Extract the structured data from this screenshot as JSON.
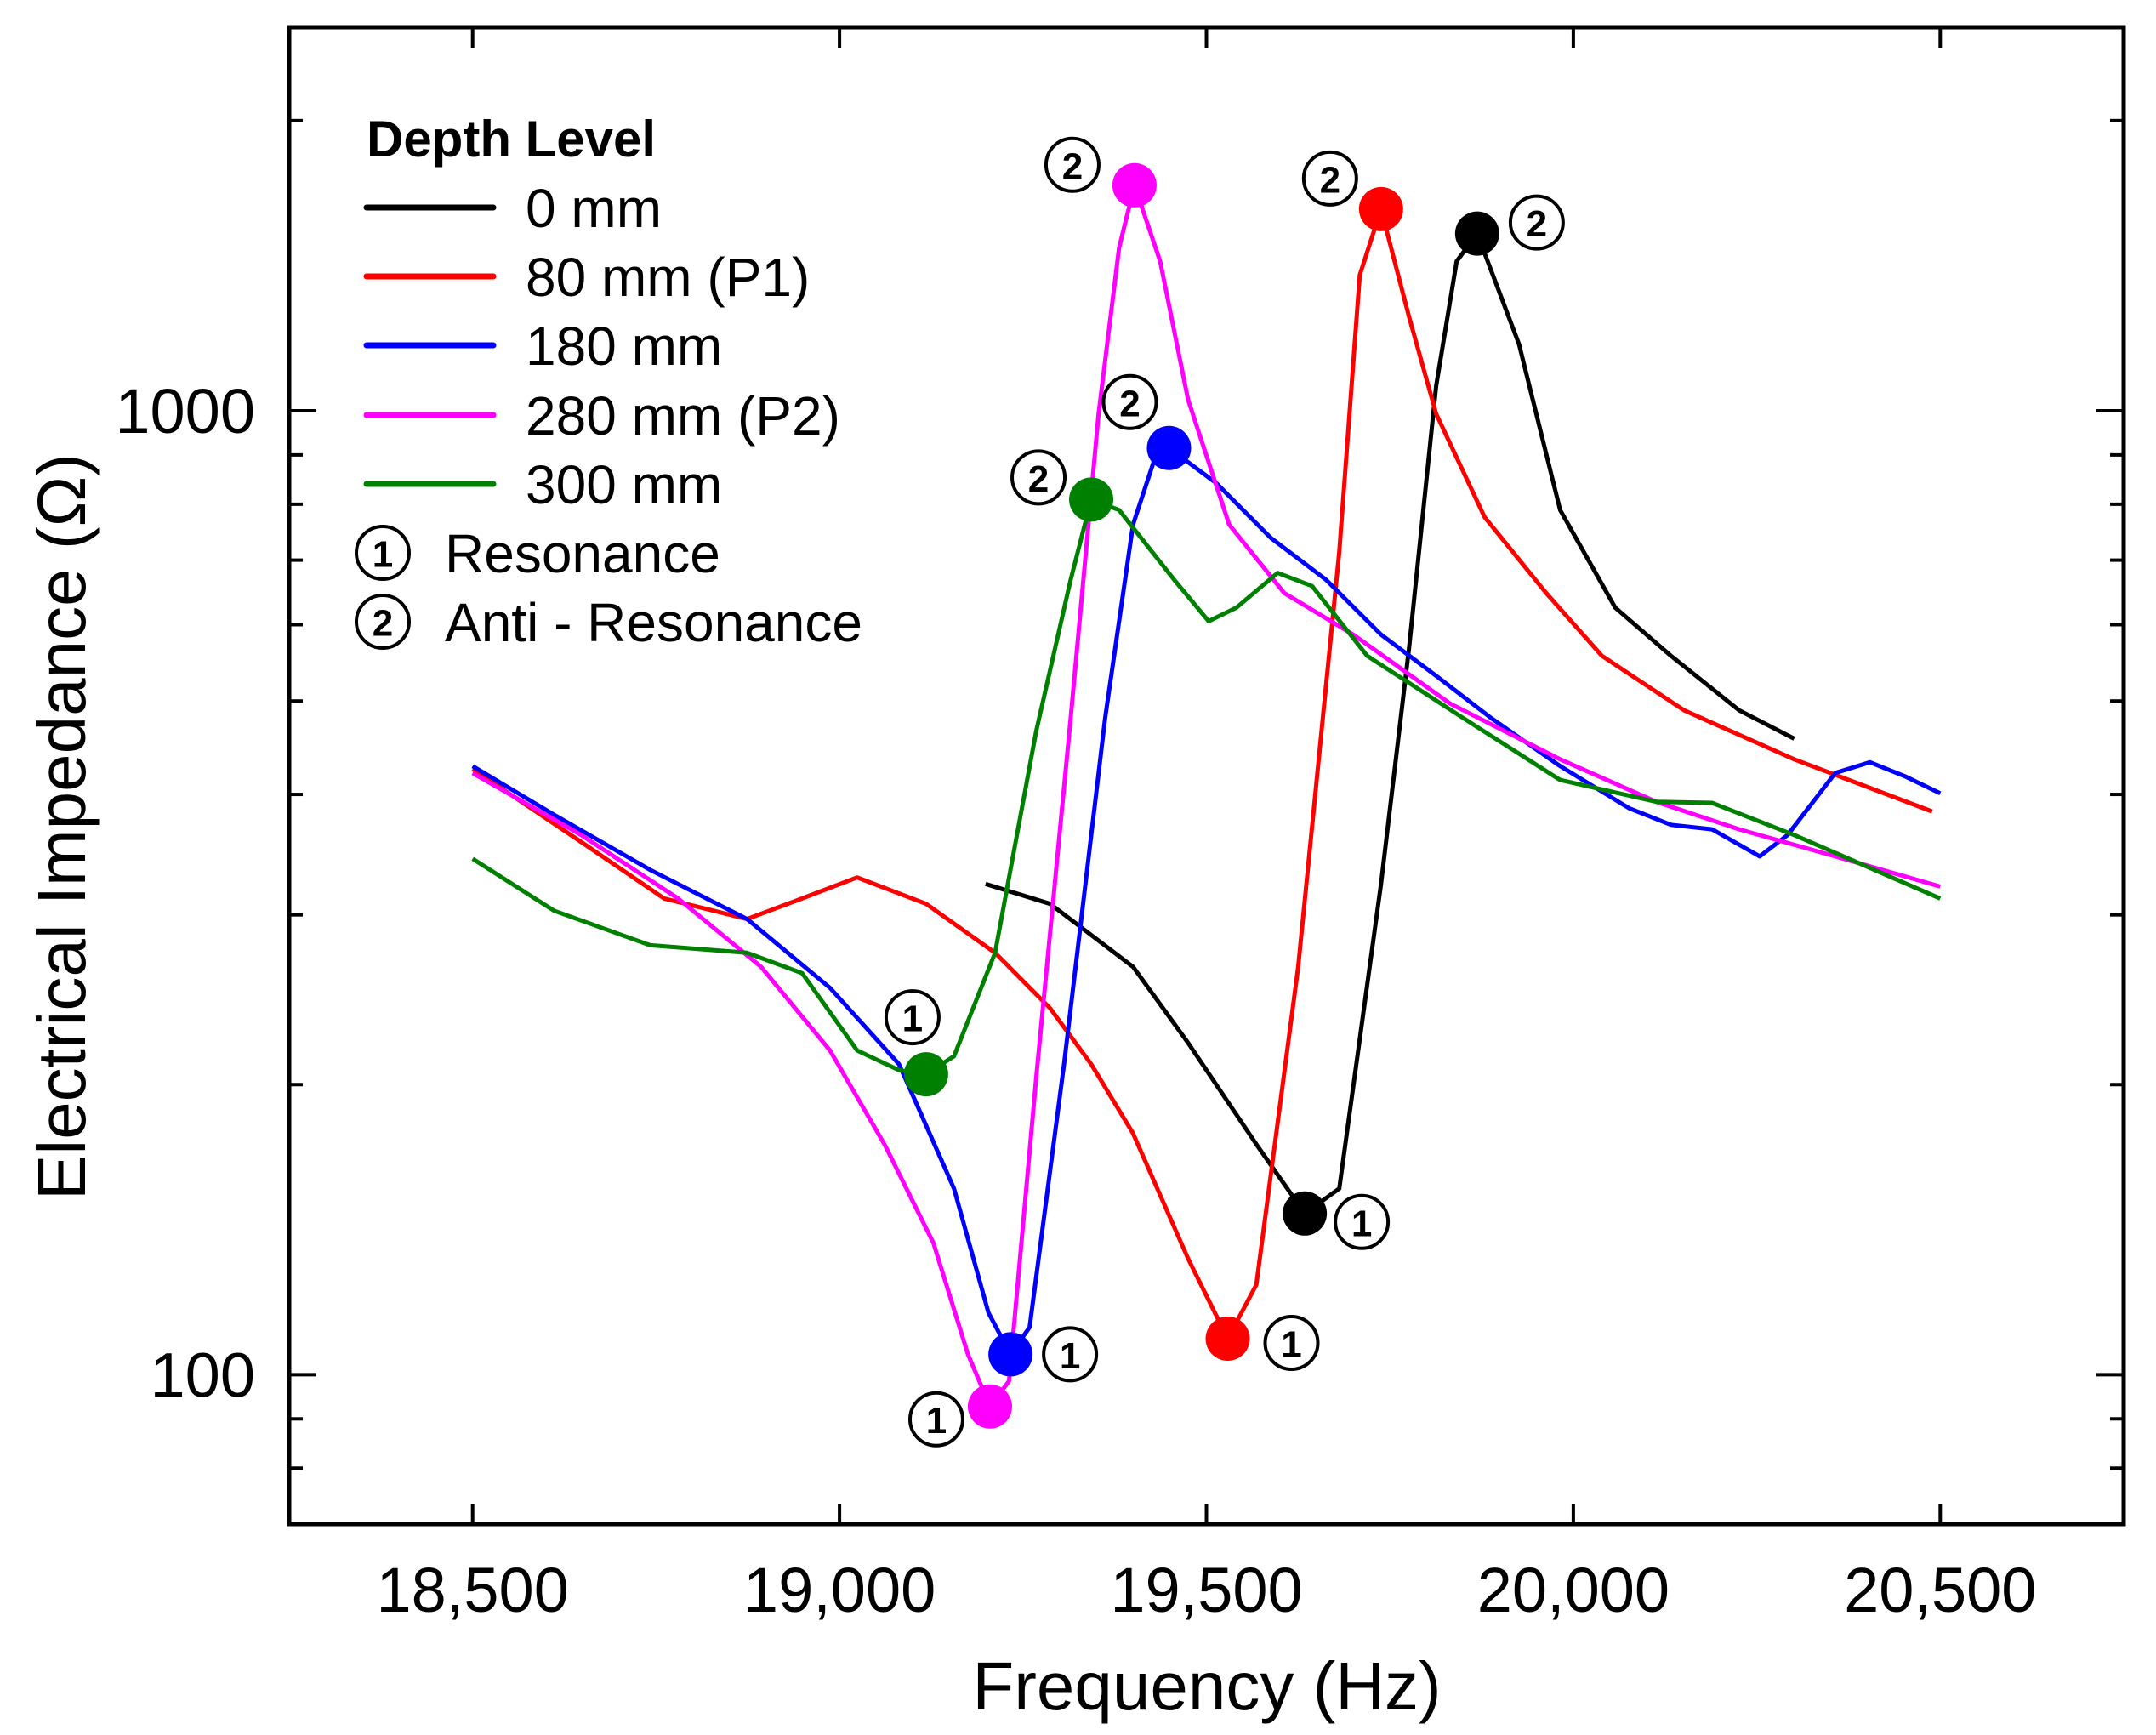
{
  "chart_data": {
    "type": "line",
    "xlabel": "Frequency (Hz)",
    "ylabel": "Electrical Impedance (Ω)",
    "xlim": [
      18250,
      20750
    ],
    "ylim": [
      70,
      2500
    ],
    "yscale": "log",
    "grid": false,
    "x_ticks": [
      18500,
      19000,
      19500,
      20000,
      20500
    ],
    "x_tick_labels": [
      "18,500",
      "19,000",
      "19,500",
      "20,000",
      "20,500"
    ],
    "y_major_ticks": [
      100,
      1000
    ],
    "y_tick_labels": [
      "100",
      "1000"
    ],
    "y_minor_ticks": [
      80,
      90,
      200,
      300,
      400,
      500,
      600,
      700,
      800,
      900,
      2000
    ],
    "legend": {
      "title": "Depth Level",
      "placement": "top-left",
      "marker_entries": [
        {
          "symbol": "1",
          "label": "Resonance"
        },
        {
          "symbol": "2",
          "label": "Anti - Resonance"
        }
      ]
    },
    "series": [
      {
        "name": "0 mm",
        "color": "#000000",
        "x": [
          19199,
          19287,
          19400,
          19475,
          19569,
          19634,
          19681,
          19738,
          19776,
          19813,
          19841,
          19869,
          19926,
          19982,
          20057,
          20133,
          20226,
          20301
        ],
        "y": [
          323,
          308,
          265,
          221,
          173,
          147,
          156,
          323,
          566,
          1061,
          1429,
          1527,
          1172,
          789,
          625,
          557,
          489,
          457
        ],
        "resonance": {
          "x": 19634,
          "y": 147,
          "label": "1"
        },
        "anti_resonance": {
          "x": 19869,
          "y": 1527,
          "label": "2"
        }
      },
      {
        "name": "80 mm (P1)",
        "color": "#ff0000",
        "x": [
          18500,
          18648,
          18761,
          18874,
          18949,
          19024,
          19118,
          19212,
          19287,
          19343,
          19400,
          19475,
          19529,
          19568,
          19625,
          19681,
          19709,
          19738,
          19776,
          19813,
          19879,
          19963,
          20039,
          20151,
          20301,
          20489
        ],
        "y": [
          425,
          357,
          312,
          297,
          312,
          328,
          308,
          274,
          240,
          210,
          178,
          132,
          109,
          124,
          265,
          714,
          1383,
          1619,
          1253,
          993,
          776,
          647,
          557,
          489,
          435,
          384
        ],
        "resonance": {
          "x": 19529,
          "y": 109,
          "label": "1"
        },
        "anti_resonance": {
          "x": 19738,
          "y": 1619,
          "label": "2"
        }
      },
      {
        "name": "180 mm",
        "color": "#0000ff",
        "x": [
          18500,
          18611,
          18742,
          18874,
          18987,
          19081,
          19156,
          19203,
          19233,
          19259,
          19306,
          19362,
          19400,
          19428,
          19449,
          19513,
          19588,
          19663,
          19738,
          19813,
          19888,
          19982,
          20076,
          20133,
          20189,
          20254,
          20292,
          20357,
          20404,
          20451,
          20500
        ],
        "y": [
          428,
          381,
          334,
          297,
          252,
          210,
          156,
          116,
          105,
          112,
          210,
          480,
          762,
          885,
          915,
          842,
          738,
          668,
          586,
          531,
          480,
          428,
          387,
          372,
          368,
          345,
          363,
          421,
          432,
          418,
          401
        ],
        "resonance": {
          "x": 19233,
          "y": 105,
          "label": "1"
        },
        "anti_resonance": {
          "x": 19449,
          "y": 915,
          "label": "2"
        }
      },
      {
        "name": "280 mm (P2)",
        "color": "#ff00ff",
        "x": [
          18500,
          18648,
          18780,
          18893,
          18987,
          19062,
          19128,
          19175,
          19205,
          19231,
          19268,
          19315,
          19353,
          19381,
          19402,
          19437,
          19475,
          19531,
          19606,
          19700,
          19832,
          19982,
          20113,
          20226,
          20357,
          20500
        ],
        "y": [
          421,
          363,
          312,
          265,
          217,
          173,
          137,
          105,
          92.7,
          98.5,
          203,
          480,
          993,
          1476,
          1714,
          1429,
          1027,
          762,
          647,
          586,
          497,
          435,
          393,
          368,
          345,
          321
        ],
        "resonance": {
          "x": 19205,
          "y": 92.7,
          "label": "1"
        },
        "anti_resonance": {
          "x": 19402,
          "y": 1714,
          "label": "2"
        }
      },
      {
        "name": "300 mm",
        "color": "#008000",
        "x": [
          18500,
          18611,
          18742,
          18874,
          18949,
          19024,
          19081,
          19118,
          19156,
          19212,
          19268,
          19315,
          19343,
          19381,
          19456,
          19503,
          19541,
          19597,
          19644,
          19719,
          19850,
          19982,
          20113,
          20189,
          20301,
          20500
        ],
        "y": [
          343,
          303,
          279,
          274,
          261,
          217,
          207,
          205,
          214,
          274,
          465,
          668,
          809,
          789,
          668,
          605,
          625,
          679,
          658,
          557,
          480,
          414,
          393,
          392,
          363,
          312
        ],
        "resonance": {
          "x": 19118,
          "y": 205,
          "label": "1"
        },
        "anti_resonance": {
          "x": 19343,
          "y": 809,
          "label": "2"
        }
      }
    ]
  }
}
